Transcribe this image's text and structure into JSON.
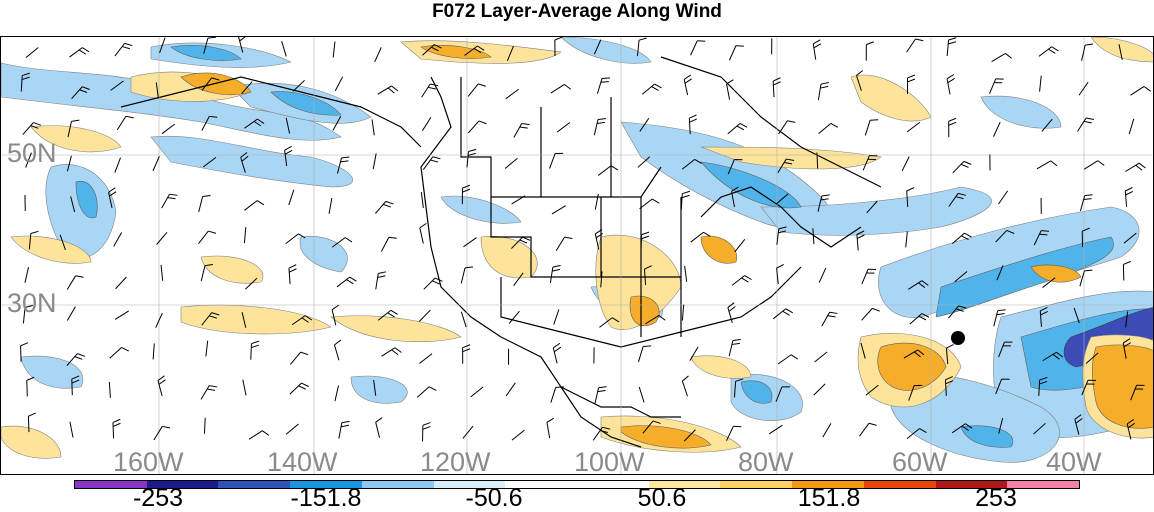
{
  "title": "F072 Layer-Average Along Wind",
  "lat_labels": [
    "50N",
    "30N"
  ],
  "lon_labels": [
    "160W",
    "140W",
    "120W",
    "100W",
    "80W",
    "60W",
    "40W"
  ],
  "colorbar": {
    "colors": [
      "#8a35c8",
      "#1b1b8c",
      "#2f52b8",
      "#1896e0",
      "#8fc8f0",
      "#d8eefa",
      "#ffffff",
      "#ffffff",
      "#ffeaa0",
      "#fbd166",
      "#f39a10",
      "#e8460a",
      "#b01818",
      "#f37faa"
    ],
    "labels": [
      "-253",
      "-151.8",
      "-50.6",
      "50.6",
      "151.8",
      "253"
    ]
  },
  "legend_colors": {
    "neg_light": "#a9d6f5",
    "neg_mid": "#50b4ea",
    "neg_dark": "#2b6fcc",
    "neg_deep": "#3b4cb8",
    "pos_light": "#fde49a",
    "pos_mid": "#f6ad2a",
    "pos_dark": "#f0780e"
  }
}
